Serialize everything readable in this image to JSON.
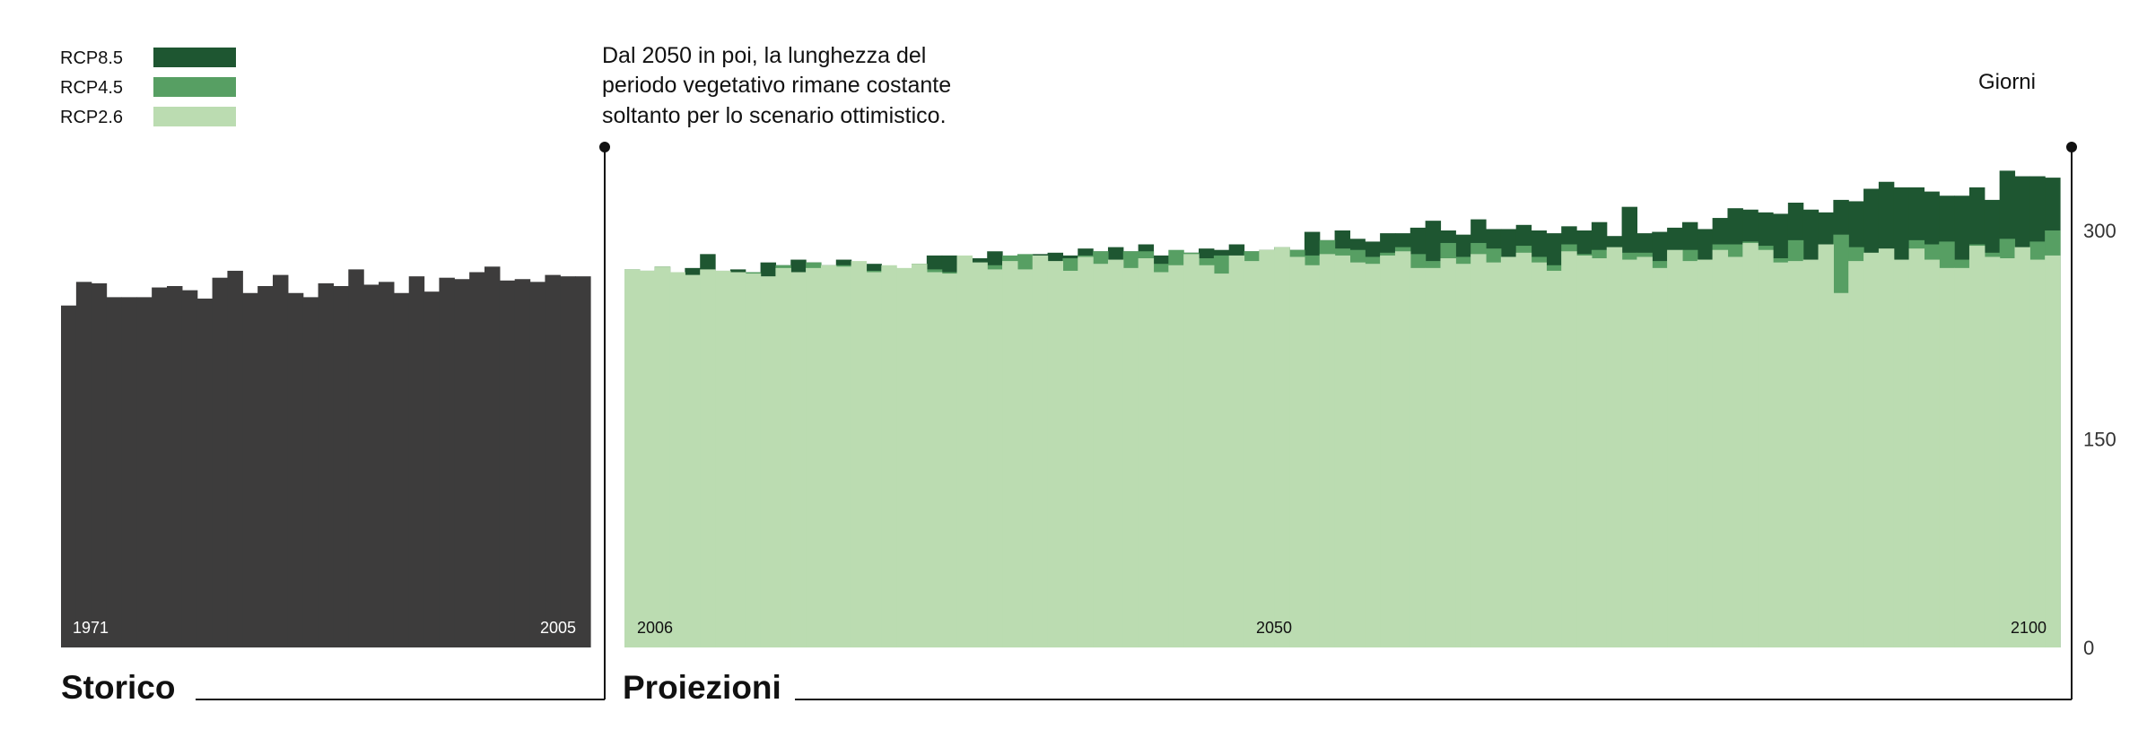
{
  "chart_data": {
    "type": "area",
    "legend": {
      "placement": "top-left",
      "items": [
        {
          "label": "RCP8.5",
          "color": "#1e5631"
        },
        {
          "label": "RCP4.5",
          "color": "#579f63"
        },
        {
          "label": "RCP2.6",
          "color": "#bbdcb1"
        }
      ]
    },
    "annotation": "Dal 2050 in poi, la lunghezza del periodo vegetativo rimane costante soltanto per lo scenario ottimistico.",
    "annotation_lines": [
      "Dal 2050 in poi, la lunghezza del",
      "periodo vegetativo rimane costante",
      "soltanto per lo scenario ottimistico."
    ],
    "ylabel": "Giorni",
    "ylim": [
      0,
      360
    ],
    "yticks": [
      0,
      150,
      300
    ],
    "panels": {
      "historical": {
        "title": "Storico",
        "color": "#3d3c3c",
        "tick_labels": [
          "1971",
          "2005"
        ],
        "x": [
          1971,
          1972,
          1973,
          1974,
          1975,
          1976,
          1977,
          1978,
          1979,
          1980,
          1981,
          1982,
          1983,
          1984,
          1985,
          1986,
          1987,
          1988,
          1989,
          1990,
          1991,
          1992,
          1993,
          1994,
          1995,
          1996,
          1997,
          1998,
          1999,
          2000,
          2001,
          2002,
          2003,
          2004,
          2005
        ],
        "values": [
          246,
          263,
          262,
          252,
          252,
          252,
          259,
          260,
          257,
          251,
          266,
          271,
          255,
          260,
          268,
          255,
          252,
          262,
          260,
          272,
          261,
          263,
          255,
          267,
          256,
          266,
          265,
          270,
          274,
          264,
          265,
          263,
          268,
          267,
          267
        ]
      },
      "projections": {
        "title": "Proiezioni",
        "tick_labels": [
          "2006",
          "2050",
          "2100"
        ],
        "x": [
          2006,
          2007,
          2008,
          2009,
          2010,
          2011,
          2012,
          2013,
          2014,
          2015,
          2016,
          2017,
          2018,
          2019,
          2020,
          2021,
          2022,
          2023,
          2024,
          2025,
          2026,
          2027,
          2028,
          2029,
          2030,
          2031,
          2032,
          2033,
          2034,
          2035,
          2036,
          2037,
          2038,
          2039,
          2040,
          2041,
          2042,
          2043,
          2044,
          2045,
          2046,
          2047,
          2048,
          2049,
          2050,
          2051,
          2052,
          2053,
          2054,
          2055,
          2056,
          2057,
          2058,
          2059,
          2060,
          2061,
          2062,
          2063,
          2064,
          2065,
          2066,
          2067,
          2068,
          2069,
          2070,
          2071,
          2072,
          2073,
          2074,
          2075,
          2076,
          2077,
          2078,
          2079,
          2080,
          2081,
          2082,
          2083,
          2084,
          2085,
          2086,
          2087,
          2088,
          2089,
          2090,
          2091,
          2092,
          2093,
          2094,
          2095,
          2096,
          2097,
          2098,
          2099,
          2100
        ],
        "series": [
          {
            "name": "RCP8.5",
            "color": "#1e5631",
            "values": [
              272,
              271,
              274,
              270,
              273,
              283,
              271,
              272,
              270,
              277,
              275,
              279,
              277,
              275,
              279,
              272,
              276,
              273,
              271,
              276,
              282,
              282,
              281,
              280,
              285,
              281,
              280,
              283,
              284,
              282,
              287,
              285,
              288,
              285,
              290,
              282,
              282,
              284,
              287,
              286,
              290,
              285,
              286,
              288,
              286,
              299,
              293,
              300,
              294,
              292,
              298,
              298,
              302,
              307,
              300,
              297,
              308,
              301,
              301,
              304,
              300,
              298,
              303,
              300,
              306,
              296,
              317,
              298,
              299,
              302,
              306,
              301,
              309,
              316,
              315,
              313,
              312,
              320,
              315,
              313,
              322,
              321,
              330,
              335,
              331,
              331,
              328,
              325,
              325,
              331,
              322,
              343,
              339,
              339,
              338
            ]
          },
          {
            "name": "RCP4.5",
            "color": "#579f63",
            "values": [
              272,
              271,
              274,
              270,
              268,
              265,
              270,
              266,
              270,
              266,
              275,
              268,
              277,
              272,
              275,
              268,
              271,
              273,
              271,
              276,
              272,
              270,
              275,
              277,
              275,
              282,
              283,
              279,
              270,
              280,
              282,
              285,
              275,
              285,
              285,
              276,
              286,
              284,
              280,
              282,
              281,
              285,
              284,
              288,
              286,
              282,
              293,
              287,
              286,
              281,
              284,
              288,
              283,
              278,
              291,
              281,
              291,
              287,
              281,
              289,
              281,
              275,
              290,
              283,
              286,
              282,
              284,
              284,
              278,
              285,
              286,
              279,
              290,
              290,
              292,
              289,
              280,
              293,
              278,
              286,
              297,
              288,
              282,
              280,
              278,
              293,
              290,
              292,
              279,
              290,
              284,
              294,
              287,
              292,
              300
            ]
          },
          {
            "name": "RCP2.6",
            "color": "#bbdcb1",
            "values": [
              272,
              271,
              274,
              270,
              268,
              272,
              271,
              270,
              269,
              267,
              273,
              270,
              273,
              275,
              274,
              278,
              270,
              275,
              273,
              276,
              270,
              269,
              282,
              277,
              272,
              278,
              272,
              282,
              278,
              271,
              281,
              276,
              279,
              273,
              280,
              270,
              275,
              283,
              275,
              269,
              282,
              278,
              286,
              288,
              281,
              275,
              283,
              282,
              277,
              276,
              282,
              285,
              273,
              273,
              280,
              276,
              283,
              277,
              281,
              284,
              277,
              271,
              285,
              282,
              280,
              288,
              279,
              281,
              273,
              286,
              278,
              279,
              286,
              281,
              291,
              286,
              277,
              278,
              279,
              290,
              255,
              278,
              284,
              287,
              279,
              287,
              279,
              273,
              273,
              289,
              281,
              280,
              288,
              279,
              282
            ]
          }
        ]
      }
    }
  }
}
